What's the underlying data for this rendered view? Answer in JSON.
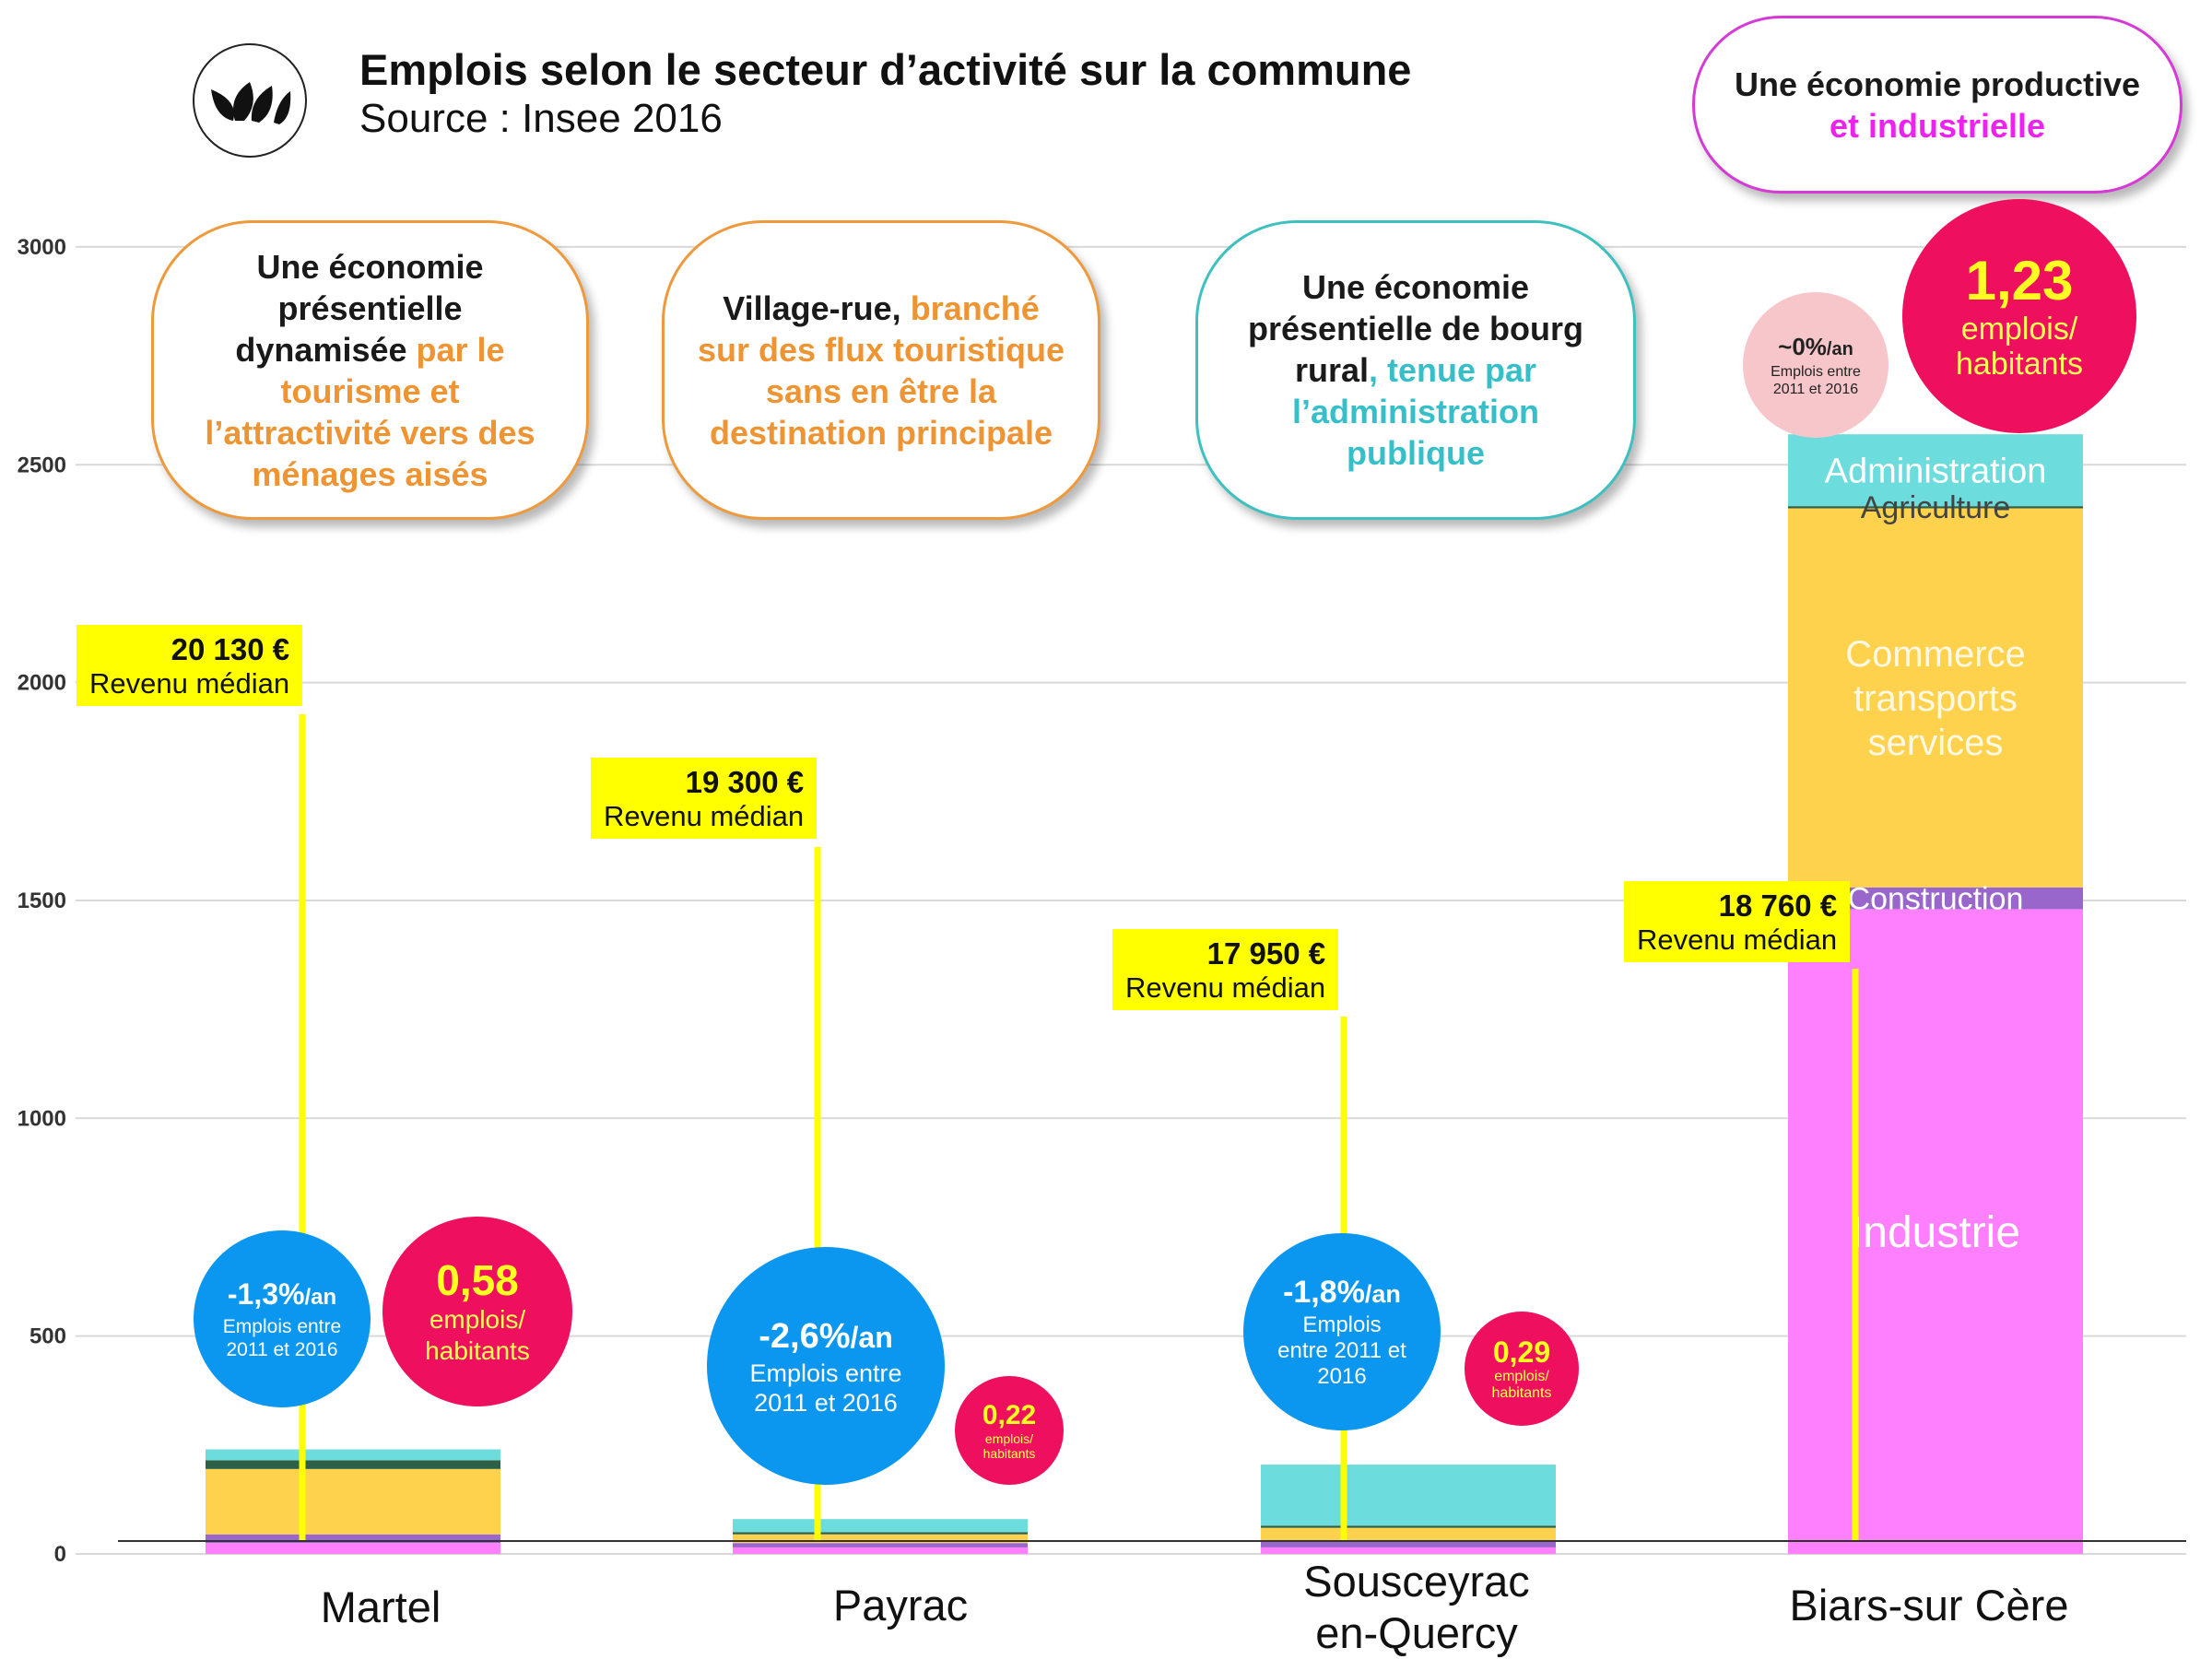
{
  "header": {
    "title": "Emplois selon le secteur d’activité sur la commune",
    "subtitle": "Source : Insee 2016"
  },
  "callouts": {
    "martel": [
      {
        "text": "Une économie",
        "color": "dark"
      },
      {
        "text": "présentielle",
        "color": "dark"
      },
      {
        "text": "dynamisée ",
        "color": "dark",
        "cont": "par le",
        "cont_color": "orange"
      },
      {
        "text": "tourisme et",
        "color": "orange"
      },
      {
        "text": "l’attractivité vers des",
        "color": "orange"
      },
      {
        "text": "ménages aisés",
        "color": "orange"
      }
    ],
    "payrac": [
      {
        "text": "Village-rue, ",
        "color": "dark",
        "cont": "branché",
        "cont_color": "orange"
      },
      {
        "text": "sur des flux touristique",
        "color": "orange"
      },
      {
        "text": "sans en être la",
        "color": "orange"
      },
      {
        "text": "destination principale",
        "color": "orange"
      }
    ],
    "sousceyrac": [
      {
        "text": "Une économie",
        "color": "dark"
      },
      {
        "text": "présentielle de bourg",
        "color": "dark"
      },
      {
        "text": "rural",
        "color": "dark",
        "cont": ", tenue par",
        "cont_color": "teal"
      },
      {
        "text": "l’administration",
        "color": "teal"
      },
      {
        "text": "publique",
        "color": "teal"
      }
    ],
    "biars": [
      {
        "text": "Une économie productive",
        "color": "dark"
      },
      {
        "text": "et industrielle",
        "color": "magenta"
      }
    ]
  },
  "salaries": {
    "martel": {
      "amount": "20 130 €",
      "label": "Revenu médian"
    },
    "payrac": {
      "amount": "19 300 €",
      "label": "Revenu médian"
    },
    "sousceyrac": {
      "amount": "17 950 €",
      "label": "Revenu médian"
    },
    "biars": {
      "amount": "18 760 €",
      "label": "Revenu médian"
    }
  },
  "growth": {
    "martel": {
      "value": "-1,3%",
      "unit": "/an",
      "caption": [
        "Emplois entre",
        "2011 et 2016"
      ]
    },
    "payrac": {
      "value": "-2,6%",
      "unit": "/an",
      "caption": [
        "Emplois entre",
        "2011 et 2016"
      ]
    },
    "sousceyrac": {
      "value": "-1,8%",
      "unit": "/an",
      "caption": [
        "Emplois",
        "entre 2011 et",
        "2016"
      ]
    },
    "biars": {
      "value": "~0%",
      "unit": "/an",
      "caption": [
        "Emplois entre",
        "2011 et 2016"
      ]
    }
  },
  "ratio": {
    "martel": {
      "value": "0,58",
      "caption": [
        "emplois/",
        "habitants"
      ]
    },
    "payrac": {
      "value": "0,22",
      "caption": [
        "emplois/",
        "habitants"
      ]
    },
    "sousceyrac": {
      "value": "0,29",
      "caption": [
        "emplois/",
        "habitants"
      ]
    },
    "biars": {
      "value": "1,23",
      "caption": [
        "emplois/",
        "habitants"
      ]
    }
  },
  "segment_colors": {
    "Industrie": "#ff80ff",
    "Construction": "#9966cc",
    "Commerce transports services": "#ffd24d",
    "Agriculture": "#2e6048",
    "Administration": "#6ddcdc"
  },
  "colors": {
    "growth_circle": "#0b97f0",
    "ratio_circle": "#ef0f5f",
    "salary_tag": "#ffff00",
    "orange_text": "#ef9433",
    "teal_text": "#37bfc9",
    "magenta_text": "#ee22ee"
  },
  "chart_data": {
    "type": "bar",
    "stacked": true,
    "title": "Emplois selon le secteur d’activité sur la commune",
    "categories": [
      "Martel",
      "Payrac",
      "Sousceyrac en-Quercy",
      "Biars-sur Cère"
    ],
    "category_lines": [
      [
        "Martel"
      ],
      [
        "Payrac"
      ],
      [
        "Sousceyrac",
        "en-Quercy"
      ],
      [
        "Biars-sur Cère"
      ]
    ],
    "series": [
      {
        "name": "Industrie",
        "values": [
          25,
          15,
          15,
          1480
        ]
      },
      {
        "name": "Construction",
        "values": [
          20,
          10,
          15,
          50
        ]
      },
      {
        "name": "Commerce transports services",
        "values": [
          150,
          20,
          30,
          870
        ]
      },
      {
        "name": "Agriculture",
        "values": [
          20,
          5,
          5,
          5
        ]
      },
      {
        "name": "Administration",
        "values": [
          25,
          30,
          140,
          165
        ]
      }
    ],
    "segment_labels": [
      null,
      null,
      null,
      [
        "Industrie",
        "Construction",
        "Commerce transports services",
        "Agriculture",
        "Administration"
      ]
    ],
    "y_ticks": [
      0,
      500,
      1000,
      1500,
      2000,
      2500,
      3000
    ],
    "ylim": [
      0,
      3000
    ],
    "grid": true,
    "legend": "none"
  }
}
